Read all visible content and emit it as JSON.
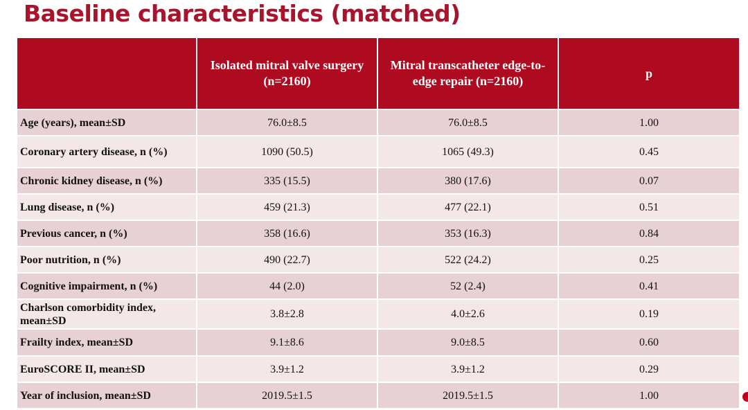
{
  "header": {
    "title": "Baseline characteristics (matched)"
  },
  "table": {
    "columns": [
      "",
      "Isolated mitral valve surgery (n=2160)",
      "Mitral transcatheter edge-to-edge repair (n=2160)",
      "p"
    ],
    "rows": [
      [
        "Age (years), mean±SD",
        "76.0±8.5",
        "76.0±8.5",
        "1.00"
      ],
      [
        "Coronary artery disease, n (%)",
        "1090 (50.5)",
        "1065 (49.3)",
        "0.45"
      ],
      [
        "Chronic kidney disease, n (%)",
        "335 (15.5)",
        "380 (17.6)",
        "0.07"
      ],
      [
        "Lung disease, n (%)",
        "459 (21.3)",
        "477 (22.1)",
        "0.51"
      ],
      [
        "Previous cancer, n (%)",
        "358 (16.6)",
        "353 (16.3)",
        "0.84"
      ],
      [
        "Poor nutrition, n (%)",
        "490 (22.7)",
        "522 (24.2)",
        "0.25"
      ],
      [
        "Cognitive impairment, n (%)",
        "44 (2.0)",
        "52 (2.4)",
        "0.41"
      ],
      [
        "Charlson comorbidity index, mean±SD",
        "3.8±2.8",
        "4.0±2.6",
        "0.19"
      ],
      [
        "Frailty index, mean±SD",
        "9.1±8.6",
        "9.0±8.5",
        "0.60"
      ],
      [
        "EuroSCORE II, mean±SD",
        "3.9±1.2",
        "3.9±1.2",
        "0.29"
      ],
      [
        "Year of inclusion, mean±SD",
        "2019.5±1.5",
        "2019.5±1.5",
        "1.00"
      ]
    ]
  }
}
